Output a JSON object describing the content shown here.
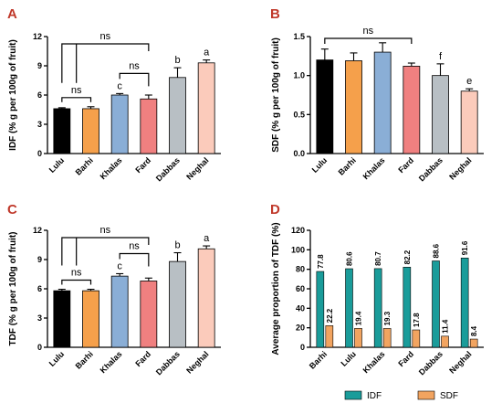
{
  "panels": [
    {
      "letter": "A",
      "ylabel": "IDF (% g per 100g of fruit)",
      "ylim": [
        0,
        12
      ],
      "yticks": [
        0,
        3,
        6,
        9,
        12
      ],
      "ytick_labels": [
        "0",
        "3",
        "6",
        "9",
        "12"
      ],
      "categories": [
        "Lulu",
        "Barhi",
        "Khalas",
        "Fard",
        "Dabbas",
        "Neghal"
      ],
      "values": [
        4.6,
        4.6,
        6.0,
        5.6,
        7.8,
        9.3
      ],
      "errors": [
        0.1,
        0.2,
        0.15,
        0.4,
        1.0,
        0.3
      ],
      "colors": [
        "#000000",
        "#f5a04b",
        "#8aaed6",
        "#f08080",
        "#b8bfc4",
        "#fbcbbb"
      ],
      "letters": [
        "",
        "",
        "c",
        "",
        "b",
        "a"
      ],
      "ns": [
        "ns",
        "ns",
        "ns"
      ]
    },
    {
      "letter": "B",
      "ylabel": "SDF (% g per 100g of fruit)",
      "ylim": [
        0,
        1.5
      ],
      "yticks": [
        0,
        0.5,
        1.0,
        1.5
      ],
      "ytick_labels": [
        "0.0",
        "0.5",
        "1.0",
        "1.5"
      ],
      "categories": [
        "Lulu",
        "Barhi",
        "Khalas",
        "Fard",
        "Dabbas",
        "Neghal"
      ],
      "values": [
        1.2,
        1.19,
        1.3,
        1.12,
        1.0,
        0.8
      ],
      "errors": [
        0.14,
        0.1,
        0.12,
        0.04,
        0.15,
        0.03
      ],
      "colors": [
        "#000000",
        "#f5a04b",
        "#8aaed6",
        "#f08080",
        "#b8bfc4",
        "#fbcbbb"
      ],
      "letters": [
        "",
        "",
        "",
        "",
        "f",
        "e"
      ],
      "ns": [
        "ns"
      ]
    },
    {
      "letter": "C",
      "ylabel": "TDF (% g per 100g of fruit)",
      "ylim": [
        0,
        12
      ],
      "yticks": [
        0,
        3,
        6,
        9,
        12
      ],
      "ytick_labels": [
        "0",
        "3",
        "6",
        "9",
        "12"
      ],
      "categories": [
        "Lulu",
        "Barhi",
        "Khalas",
        "Fard",
        "Dabbas",
        "Neghal"
      ],
      "values": [
        5.8,
        5.8,
        7.3,
        6.8,
        8.8,
        10.1
      ],
      "errors": [
        0.15,
        0.15,
        0.25,
        0.3,
        0.9,
        0.3
      ],
      "colors": [
        "#000000",
        "#f5a04b",
        "#8aaed6",
        "#f08080",
        "#b8bfc4",
        "#fbcbbb"
      ],
      "letters": [
        "",
        "",
        "c",
        "",
        "b",
        "a"
      ],
      "ns": [
        "ns",
        "ns",
        "ns"
      ]
    }
  ],
  "panel_d": {
    "letter": "D",
    "ylabel": "Average proportion of TDF (%)",
    "ylim": [
      0,
      120
    ],
    "yticks": [
      0,
      20,
      40,
      60,
      80,
      100,
      120
    ],
    "ytick_labels": [
      "0",
      "20",
      "40",
      "60",
      "80",
      "100",
      "120"
    ],
    "categories": [
      "Barhi",
      "Lulu",
      "Khalas",
      "Fard",
      "Dabbas",
      "Neghal"
    ],
    "series": [
      {
        "name": "IDF",
        "color": "#1a9c9a",
        "values": [
          77.8,
          80.6,
          80.7,
          82.2,
          88.6,
          91.6
        ],
        "labels": [
          "77.8",
          "80.6",
          "80.7",
          "82.2",
          "88.6",
          "91.6"
        ]
      },
      {
        "name": "SDF",
        "color": "#f2a460",
        "values": [
          22.2,
          19.4,
          19.3,
          17.8,
          11.4,
          8.4
        ],
        "labels": [
          "22.2",
          "19.4",
          "19.3",
          "17.8",
          "11.4",
          "8.4"
        ]
      }
    ]
  }
}
